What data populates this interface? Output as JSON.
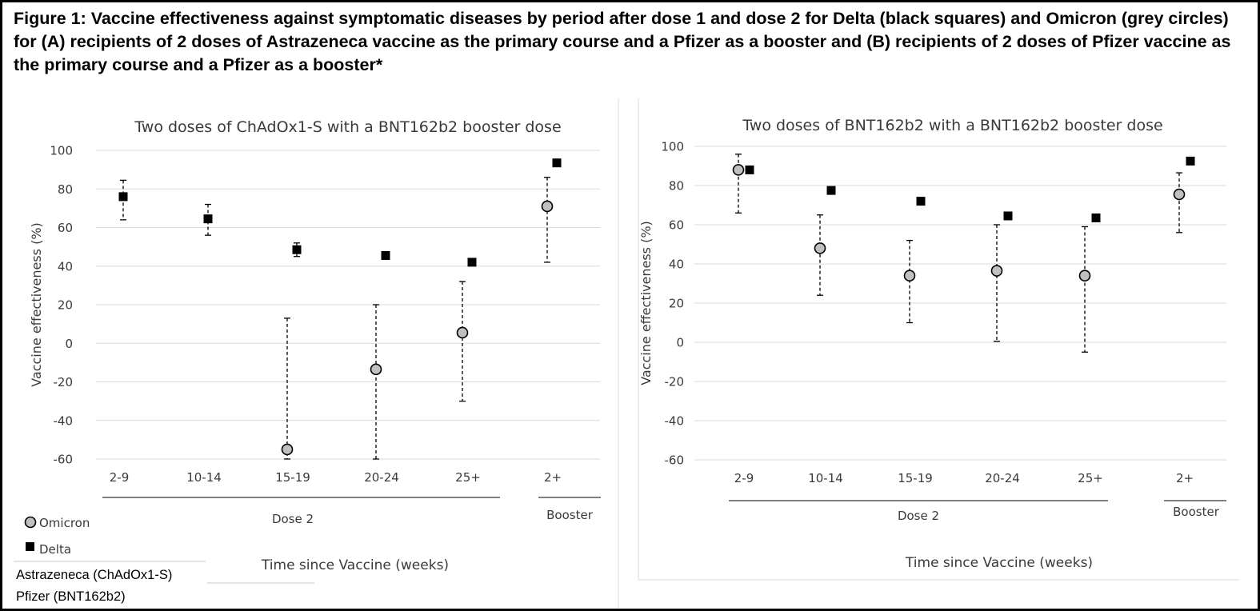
{
  "caption": "Figure 1: Vaccine effectiveness against symptomatic diseases by period after dose 1 and dose 2 for Delta (black squares) and Omicron (grey circles) for (A) recipients of 2 doses of Astrazeneca vaccine as the primary course and a Pfizer as a booster and (B) recipients of 2 doses of Pfizer vaccine as the primary course and a Pfizer as a booster*",
  "legend": {
    "omicron": "Omicron",
    "delta": "Delta",
    "vaccine_a": "Astrazeneca (ChAdOx1-S)",
    "vaccine_b": "Pfizer (BNT162b2)"
  },
  "colors": {
    "omicron": "#c0c0c0",
    "delta": "#000000",
    "grid": "#d9d9d9",
    "text": "#3a3a3a"
  },
  "chart_data": [
    {
      "type": "scatter",
      "title": "Two doses of ChAdOx1-S with a BNT162b2 booster dose",
      "ylabel": "Vaccine effectiveness (%)",
      "xlabel": "Time since Vaccine (weeks)",
      "ylim": [
        -60,
        100
      ],
      "yticks": [
        -60,
        -40,
        -20,
        0,
        20,
        40,
        60,
        80,
        100
      ],
      "grid": true,
      "categories": [
        "2-9",
        "10-14",
        "15-19",
        "20-24",
        "25+",
        "2+"
      ],
      "groups": [
        {
          "label": "Dose 2",
          "categories": [
            "2-9",
            "10-14",
            "15-19",
            "20-24",
            "25+"
          ]
        },
        {
          "label": "Booster",
          "categories": [
            "2+"
          ]
        }
      ],
      "series": [
        {
          "name": "Omicron",
          "marker": "circle",
          "values": [
            null,
            null,
            -55,
            -13.5,
            5.5,
            71
          ],
          "lower": [
            null,
            null,
            -60,
            -60,
            -30,
            42
          ],
          "upper": [
            null,
            null,
            13,
            20,
            32,
            86
          ]
        },
        {
          "name": "Delta",
          "marker": "square",
          "values": [
            76,
            64.5,
            48.5,
            45.5,
            42,
            93.5
          ],
          "lower": [
            64,
            56,
            45,
            44,
            40.5,
            92.5
          ],
          "upper": [
            84.5,
            72,
            52,
            47,
            43,
            94.5
          ]
        }
      ]
    },
    {
      "type": "scatter",
      "title": "Two doses of BNT162b2 with a BNT162b2 booster dose",
      "ylabel": "Vaccine effectiveness (%)",
      "xlabel": "Time since Vaccine (weeks)",
      "ylim": [
        -60,
        100
      ],
      "yticks": [
        -60,
        -40,
        -20,
        0,
        20,
        40,
        60,
        80,
        100
      ],
      "grid": true,
      "categories": [
        "2-9",
        "10-14",
        "15-19",
        "20-24",
        "25+",
        "2+"
      ],
      "groups": [
        {
          "label": "Dose 2",
          "categories": [
            "2-9",
            "10-14",
            "15-19",
            "20-24",
            "25+"
          ]
        },
        {
          "label": "Booster",
          "categories": [
            "2+"
          ]
        }
      ],
      "series": [
        {
          "name": "Omicron",
          "marker": "circle",
          "values": [
            88,
            48,
            34,
            36.5,
            34,
            75.5
          ],
          "lower": [
            66,
            24,
            10,
            0.5,
            -5,
            56
          ],
          "upper": [
            96,
            65,
            52,
            60,
            59,
            86.5
          ]
        },
        {
          "name": "Delta",
          "marker": "square",
          "values": [
            88,
            77.5,
            72,
            64.5,
            63.5,
            92.5
          ],
          "lower": [
            87,
            76.5,
            71,
            63.5,
            62.5,
            91.5
          ],
          "upper": [
            89,
            78.5,
            73,
            65.5,
            64.5,
            93.5
          ]
        }
      ]
    }
  ]
}
